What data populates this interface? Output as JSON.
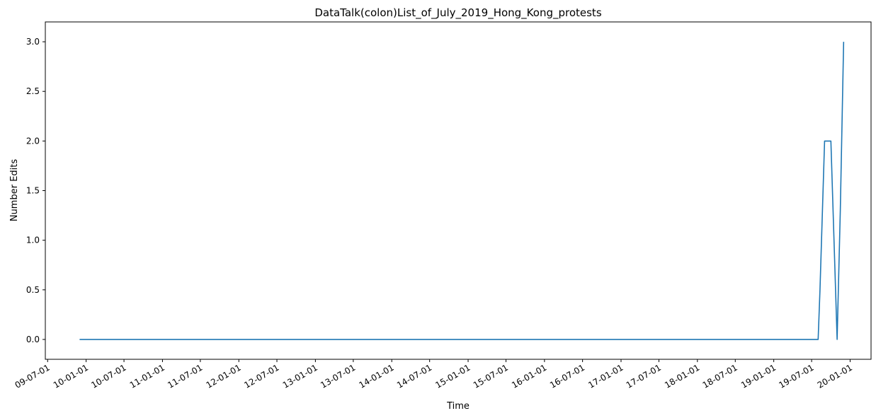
{
  "chart_data": {
    "type": "line",
    "title": "DataTalk(colon)List_of_July_2019_Hong_Kong_protests",
    "xlabel": "Time",
    "ylabel": "Number Edits",
    "ylim": [
      -0.2,
      3.2
    ],
    "xlim": [
      "2009-06-20",
      "2020-04-10"
    ],
    "y_ticks": [
      0.0,
      0.5,
      1.0,
      1.5,
      2.0,
      2.5,
      3.0
    ],
    "y_tick_labels": [
      "0.0",
      "0.5",
      "1.0",
      "1.5",
      "2.0",
      "2.5",
      "3.0"
    ],
    "x_ticks": [
      "2009-07-01",
      "2010-01-01",
      "2010-07-01",
      "2011-01-01",
      "2011-07-01",
      "2012-01-01",
      "2012-07-01",
      "2013-01-01",
      "2013-07-01",
      "2014-01-01",
      "2014-07-01",
      "2015-01-01",
      "2015-07-01",
      "2016-01-01",
      "2016-07-01",
      "2017-01-01",
      "2017-07-01",
      "2018-01-01",
      "2018-07-01",
      "2019-01-01",
      "2019-07-01",
      "2020-01-01"
    ],
    "x_tick_labels": [
      "09-07-01",
      "10-01-01",
      "10-07-01",
      "11-01-01",
      "11-07-01",
      "12-01-01",
      "12-07-01",
      "13-01-01",
      "13-07-01",
      "14-01-01",
      "14-07-01",
      "15-01-01",
      "15-07-01",
      "16-01-01",
      "16-07-01",
      "17-01-01",
      "17-07-01",
      "18-01-01",
      "18-07-01",
      "19-01-01",
      "19-07-01",
      "20-01-01"
    ],
    "grid": false,
    "series": [
      {
        "color": "#1f77b4",
        "x": [
          "2009-12-01",
          "2019-08-01",
          "2019-08-10",
          "2019-09-01",
          "2019-10-01",
          "2019-10-31",
          "2019-11-15",
          "2019-12-01"
        ],
        "y": [
          0,
          0,
          0.5,
          2,
          2,
          0,
          1.3,
          3
        ]
      }
    ]
  }
}
